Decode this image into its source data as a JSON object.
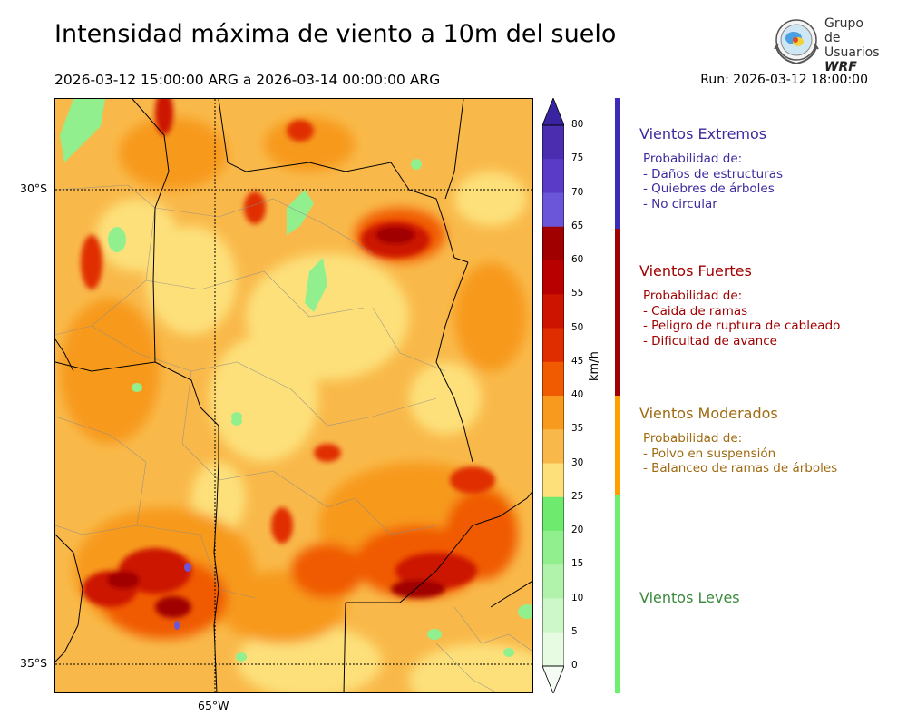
{
  "header": {
    "title": "Intensidad máxima de viento a 10m del suelo",
    "period": "2026-03-12 15:00:00 ARG  a  2026-03-14 00:00:00 ARG",
    "run": "Run: 2026-03-12 18:00:00"
  },
  "logo": {
    "line1": "Grupo de",
    "line2": "Usuarios",
    "line3": "WRF"
  },
  "map": {
    "lat_labels": [
      "30°S",
      "35°S"
    ],
    "lon_labels": [
      "65°W"
    ]
  },
  "colorbar": {
    "unit": "km/h",
    "ticks": [
      "80",
      "75",
      "70",
      "65",
      "60",
      "55",
      "50",
      "45",
      "40",
      "35",
      "30",
      "25",
      "20",
      "15",
      "10",
      "5",
      "0"
    ],
    "colors": [
      "#4b2eb0",
      "#5a3bc8",
      "#6b55d8",
      "#a00000",
      "#b80000",
      "#cc1400",
      "#e02d00",
      "#f05a00",
      "#f79a1e",
      "#f9b94a",
      "#fde07a",
      "#6eea6e",
      "#92ef8e",
      "#b2f3ac",
      "#cdf7c8",
      "#e6fbe2"
    ]
  },
  "categories": [
    {
      "title": "Vientos Extremos",
      "color": "#3c2a9e",
      "lines": [
        "Probabilidad de:",
        "- Daños de estructuras",
        "- Quiebres de árboles",
        "- No circular"
      ]
    },
    {
      "title": "Vientos Fuertes",
      "color": "#a00000",
      "lines": [
        "Probabilidad de:",
        "- Caida de ramas",
        "- Peligro de ruptura de cableado",
        "- Dificultad de avance"
      ]
    },
    {
      "title": "Vientos Moderados",
      "color": "#a06a10",
      "lines": [
        "Probabilidad de:",
        "- Polvo en suspensión",
        "- Balanceo de ramas de árboles"
      ]
    },
    {
      "title": "Vientos Leves",
      "color": "#3a8a3a",
      "lines": []
    }
  ]
}
